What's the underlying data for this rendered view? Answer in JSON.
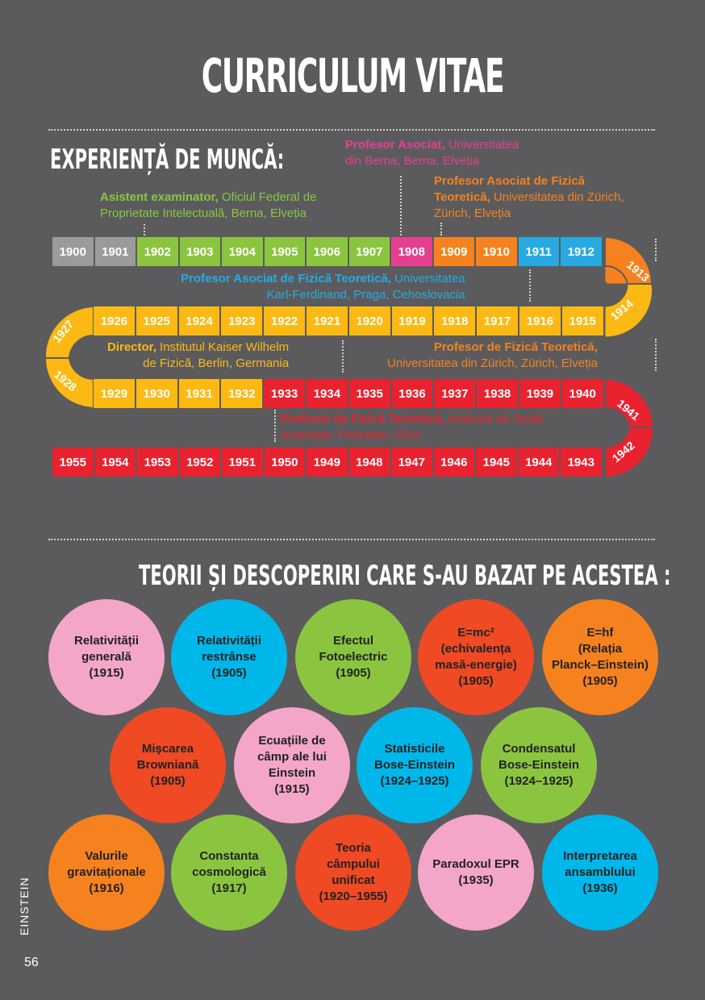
{
  "title": "CURRICULUM VITAE",
  "work_heading": "EXPERIENȚĂ DE MUNCĂ:",
  "theories_heading": "TEORII ȘI DESCOPERIRI CARE S-AU BAZAT PE ACESTEA :",
  "side_label": "EINSTEIN",
  "page_number": "56",
  "colors": {
    "grey": "#9b9b9b",
    "green": "#8bc53f",
    "pink": "#e4408f",
    "orange": "#f5821f",
    "blue": "#27aae1",
    "yellow": "#fcb913",
    "red": "#e9222f"
  },
  "jobs": [
    {
      "bold": "Asistent examinator,",
      "rest1": " Oficiul Federal de",
      "line2": "Proprietate Intelectuală, Berna, Elveția",
      "color": "#8bc53f"
    },
    {
      "bold": "Profesor Asociat,",
      "rest1": " Universitatea",
      "line2": "din Berna, Berna, Elveția",
      "color": "#e4408f"
    },
    {
      "bold": "Profesor Asociat de Fizică",
      "rest1": "",
      "line2b": "Teoretică,",
      "line2": " Universitatea din Zürich,",
      "line3": "Zürich, Elveția",
      "color": "#f5821f"
    },
    {
      "bold": "Profesor Asociat de Fizică Teoretică,",
      "rest1": " Universitatea",
      "line2": "Karl-Ferdinand, Praga, Cehoslovacia",
      "color": "#27aae1"
    },
    {
      "bold": "Director,",
      "rest1": " Institutul Kaiser Wilhelm",
      "line2": "de Fizică, Berlin, Germania",
      "color": "#fcb913"
    },
    {
      "bold": "Profesor de Fizică Teoretică,",
      "rest1": "",
      "line2": "Universitatea din Zürich, Zürich, Elveția",
      "color": "#f5821f"
    },
    {
      "bold": "Profesor de Fizică Teoretică,",
      "rest1": " Institutul de Studii",
      "line2": "Avansate, Princeton, SUA",
      "color": "#e9222f"
    }
  ],
  "row1": [
    {
      "y": "1900",
      "c": "grey"
    },
    {
      "y": "1901",
      "c": "grey"
    },
    {
      "y": "1902",
      "c": "green"
    },
    {
      "y": "1903",
      "c": "green"
    },
    {
      "y": "1904",
      "c": "green"
    },
    {
      "y": "1905",
      "c": "green"
    },
    {
      "y": "1906",
      "c": "green"
    },
    {
      "y": "1907",
      "c": "green"
    },
    {
      "y": "1908",
      "c": "pink"
    },
    {
      "y": "1909",
      "c": "orange"
    },
    {
      "y": "1910",
      "c": "orange"
    },
    {
      "y": "1911",
      "c": "blue"
    },
    {
      "y": "1912",
      "c": "blue"
    }
  ],
  "row2": [
    {
      "y": "1926",
      "c": "yellow"
    },
    {
      "y": "1925",
      "c": "yellow"
    },
    {
      "y": "1924",
      "c": "yellow"
    },
    {
      "y": "1923",
      "c": "yellow"
    },
    {
      "y": "1922",
      "c": "yellow"
    },
    {
      "y": "1921",
      "c": "yellow"
    },
    {
      "y": "1920",
      "c": "yellow"
    },
    {
      "y": "1919",
      "c": "yellow"
    },
    {
      "y": "1918",
      "c": "yellow"
    },
    {
      "y": "1917",
      "c": "yellow"
    },
    {
      "y": "1916",
      "c": "yellow"
    },
    {
      "y": "1915",
      "c": "yellow"
    }
  ],
  "row3": [
    {
      "y": "1929",
      "c": "yellow"
    },
    {
      "y": "1930",
      "c": "yellow"
    },
    {
      "y": "1931",
      "c": "yellow"
    },
    {
      "y": "1932",
      "c": "yellow"
    },
    {
      "y": "1933",
      "c": "red"
    },
    {
      "y": "1934",
      "c": "red"
    },
    {
      "y": "1935",
      "c": "red"
    },
    {
      "y": "1936",
      "c": "red"
    },
    {
      "y": "1937",
      "c": "red"
    },
    {
      "y": "1938",
      "c": "red"
    },
    {
      "y": "1939",
      "c": "red"
    },
    {
      "y": "1940",
      "c": "red"
    }
  ],
  "row4": [
    {
      "y": "1955",
      "c": "red"
    },
    {
      "y": "1954",
      "c": "red"
    },
    {
      "y": "1953",
      "c": "red"
    },
    {
      "y": "1952",
      "c": "red"
    },
    {
      "y": "1951",
      "c": "red"
    },
    {
      "y": "1950",
      "c": "red"
    },
    {
      "y": "1949",
      "c": "red"
    },
    {
      "y": "1948",
      "c": "red"
    },
    {
      "y": "1947",
      "c": "red"
    },
    {
      "y": "1946",
      "c": "red"
    },
    {
      "y": "1945",
      "c": "red"
    },
    {
      "y": "1944",
      "c": "red"
    },
    {
      "y": "1943",
      "c": "red"
    }
  ],
  "turns": {
    "y1913": "1913",
    "y1914": "1914",
    "y1927": "1927",
    "y1928": "1928",
    "y1941": "1941",
    "y1942": "1942"
  },
  "theories": [
    {
      "text": "Relativității\ngenerală\n(1915)",
      "color": "#f4a6c8"
    },
    {
      "text": "Relativității\nrestrânse\n(1905)",
      "color": "#00b7ea"
    },
    {
      "text": "Efectul\nFotoelectric\n(1905)",
      "color": "#8bc53f"
    },
    {
      "text": "E=mc²\n(echivalența\nmasă-energie)\n(1905)",
      "color": "#ef4a23"
    },
    {
      "text": "E=hf\n(Relația\nPlanck–Einstein)\n(1905)",
      "color": "#f5821f"
    },
    {
      "text": "Mișcarea\nBrowniană\n(1905)",
      "color": "#ef4a23"
    },
    {
      "text": "Ecuațiile de\ncâmp ale lui\nEinstein\n(1915)",
      "color": "#f4a6c8"
    },
    {
      "text": "Statisticile\nBose-Einstein\n(1924–1925)",
      "color": "#00b7ea"
    },
    {
      "text": "Condensatul\nBose-Einstein\n(1924–1925)",
      "color": "#8bc53f"
    },
    {
      "text": "Valurile\ngravitaționale\n(1916)",
      "color": "#f5821f"
    },
    {
      "text": "Constanta\ncosmologică\n(1917)",
      "color": "#8bc53f"
    },
    {
      "text": "Teoria\ncâmpului\nunificat\n(1920–1955)",
      "color": "#ef4a23"
    },
    {
      "text": "Paradoxul EPR\n(1935)",
      "color": "#f4a6c8"
    },
    {
      "text": "Interpretarea\nansamblului\n(1936)",
      "color": "#00b7ea"
    }
  ]
}
